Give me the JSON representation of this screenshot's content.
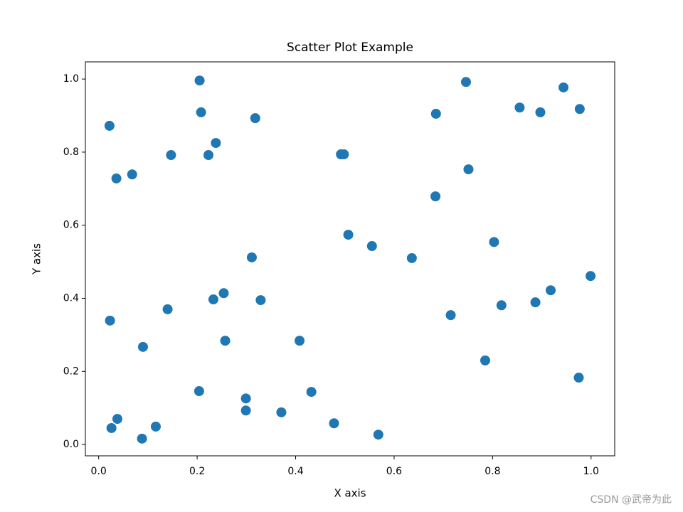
{
  "chart_data": {
    "type": "scatter",
    "title": "Scatter Plot Example",
    "x_label": "X axis",
    "y_label": "Y axis",
    "color": "#1f77b4",
    "xlim": [
      -0.027,
      1.048
    ],
    "ylim": [
      -0.031,
      1.047
    ],
    "xticks": [
      {
        "value": 0,
        "label": "0.0"
      },
      0.2,
      0.4,
      0.6,
      0.8,
      {
        "value": 1,
        "label": "1.0"
      }
    ],
    "yticks": [
      {
        "value": 0,
        "label": "0.0"
      },
      0.2,
      0.4,
      0.6,
      0.8,
      {
        "value": 1,
        "label": "1.0"
      }
    ],
    "x": [
      0.205,
      0.746,
      0.944,
      0.855,
      0.897,
      0.977,
      0.208,
      0.318,
      0.685,
      0.022,
      0.238,
      0.147,
      0.223,
      0.492,
      0.498,
      0.068,
      0.036,
      0.751,
      0.684,
      0.507,
      0.555,
      0.803,
      0.311,
      0.636,
      0.999,
      0.918,
      0.254,
      0.233,
      0.329,
      0.14,
      0.715,
      0.818,
      0.887,
      0.023,
      0.09,
      0.257,
      0.408,
      0.785,
      0.975,
      0.204,
      0.432,
      0.299,
      0.299,
      0.371,
      0.038,
      0.026,
      0.116,
      0.478,
      0.088,
      0.568
    ],
    "y": [
      0.996,
      0.992,
      0.977,
      0.922,
      0.909,
      0.918,
      0.909,
      0.893,
      0.905,
      0.872,
      0.825,
      0.792,
      0.792,
      0.794,
      0.794,
      0.739,
      0.728,
      0.753,
      0.679,
      0.574,
      0.543,
      0.554,
      0.512,
      0.51,
      0.461,
      0.422,
      0.414,
      0.397,
      0.395,
      0.37,
      0.354,
      0.381,
      0.389,
      0.339,
      0.267,
      0.284,
      0.284,
      0.23,
      0.183,
      0.146,
      0.144,
      0.126,
      0.093,
      0.088,
      0.07,
      0.045,
      0.049,
      0.058,
      0.016,
      0.027
    ]
  },
  "watermark": "CSDN @武帝为此"
}
